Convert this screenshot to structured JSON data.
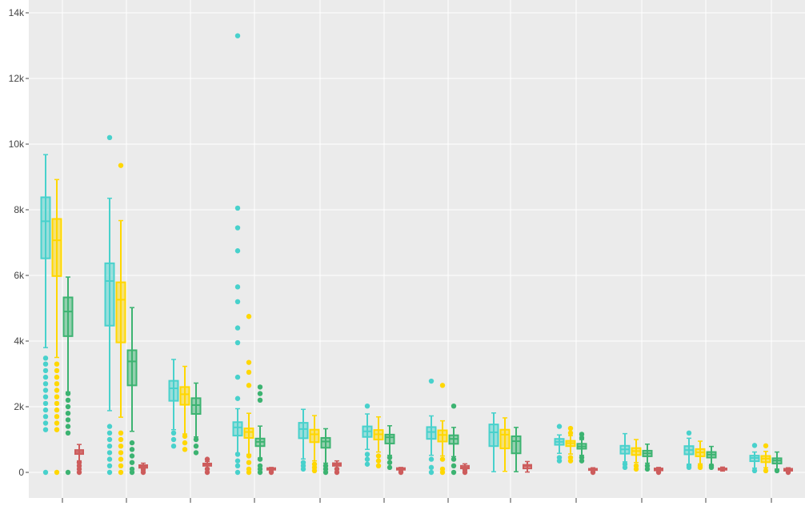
{
  "chart_data": {
    "type": "box",
    "title": "",
    "xlabel": "",
    "ylabel": "",
    "ylim": [
      -600,
      14000
    ],
    "yticks": [
      0,
      2000,
      4000,
      6000,
      8000,
      10000,
      12000,
      14000
    ],
    "ytick_labels": [
      "0",
      "2k",
      "4k",
      "6k",
      "8k",
      "10k",
      "12k",
      "14k"
    ],
    "series_colors": [
      "#48d1cc",
      "#ffd700",
      "#3cb371",
      "#cd5c5c"
    ],
    "groups": [
      {
        "boxes": [
          {
            "min": 3800,
            "q1": 6520,
            "median": 7650,
            "q3": 8380,
            "max": 9680,
            "outliers": [
              3480,
              3300,
              3100,
              2900,
              2700,
              2500,
              2300,
              2100,
              1900,
              1700,
              1500,
              1300,
              0
            ]
          },
          {
            "min": 3500,
            "q1": 5980,
            "median": 7070,
            "q3": 7720,
            "max": 8920,
            "outliers": [
              3300,
              3100,
              2900,
              2700,
              2500,
              2300,
              2100,
              1900,
              1700,
              1500,
              1300,
              0
            ]
          },
          {
            "min": 2450,
            "q1": 4150,
            "median": 4900,
            "q3": 5330,
            "max": 5950,
            "outliers": [
              2400,
              2200,
              2000,
              1800,
              1600,
              1400,
              1200,
              0
            ]
          },
          {
            "min": 350,
            "q1": 560,
            "median": 620,
            "q3": 680,
            "max": 850,
            "outliers": [
              300,
              200,
              100,
              0
            ]
          }
        ]
      },
      {
        "boxes": [
          {
            "min": 1880,
            "q1": 4470,
            "median": 5830,
            "q3": 6370,
            "max": 8350,
            "outliers": [
              10200,
              1400,
              1200,
              1000,
              800,
              600,
              400,
              200,
              0
            ]
          },
          {
            "min": 1680,
            "q1": 3960,
            "median": 5260,
            "q3": 5790,
            "max": 7670,
            "outliers": [
              9350,
              1200,
              1000,
              800,
              600,
              400,
              200,
              0
            ]
          },
          {
            "min": 1250,
            "q1": 2650,
            "median": 3380,
            "q3": 3720,
            "max": 5020,
            "outliers": [
              900,
              700,
              500,
              300,
              100,
              0
            ]
          },
          {
            "min": 60,
            "q1": 140,
            "median": 180,
            "q3": 220,
            "max": 280,
            "outliers": [
              100,
              0
            ]
          }
        ]
      },
      {
        "boxes": [
          {
            "min": 1300,
            "q1": 2180,
            "median": 2560,
            "q3": 2790,
            "max": 3440,
            "outliers": [
              1200,
              1000,
              800
            ]
          },
          {
            "min": 1170,
            "q1": 2060,
            "median": 2380,
            "q3": 2600,
            "max": 3230,
            "outliers": [
              1100,
              900,
              700
            ]
          },
          {
            "min": 1080,
            "q1": 1780,
            "median": 2050,
            "q3": 2260,
            "max": 2720,
            "outliers": [
              1000,
              800,
              600
            ]
          },
          {
            "min": 120,
            "q1": 200,
            "median": 240,
            "q3": 270,
            "max": 330,
            "outliers": [
              400,
              100,
              0
            ]
          }
        ]
      },
      {
        "boxes": [
          {
            "min": 580,
            "q1": 1120,
            "median": 1370,
            "q3": 1530,
            "max": 1940,
            "outliers": [
              13300,
              8050,
              7450,
              6750,
              5650,
              5200,
              4400,
              3950,
              2900,
              2250,
              550,
              350,
              200,
              0
            ]
          },
          {
            "min": 550,
            "q1": 1050,
            "median": 1230,
            "q3": 1340,
            "max": 1800,
            "outliers": [
              4750,
              3350,
              3050,
              2650,
              500,
              300,
              100,
              0
            ]
          },
          {
            "min": 440,
            "q1": 800,
            "median": 930,
            "q3": 1030,
            "max": 1410,
            "outliers": [
              2600,
              2400,
              2200,
              400,
              200,
              100,
              0
            ]
          },
          {
            "min": 40,
            "q1": 80,
            "median": 110,
            "q3": 130,
            "max": 150,
            "outliers": [
              0
            ]
          }
        ]
      },
      {
        "boxes": [
          {
            "min": 410,
            "q1": 1040,
            "median": 1320,
            "q3": 1510,
            "max": 1920,
            "outliers": [
              300,
              200,
              100
            ]
          },
          {
            "min": 350,
            "q1": 920,
            "median": 1160,
            "q3": 1300,
            "max": 1730,
            "outliers": [
              250,
              150,
              50
            ]
          },
          {
            "min": 280,
            "q1": 750,
            "median": 940,
            "q3": 1050,
            "max": 1330,
            "outliers": [
              200,
              100,
              0
            ]
          },
          {
            "min": 120,
            "q1": 200,
            "median": 240,
            "q3": 280,
            "max": 350,
            "outliers": [
              100,
              0
            ]
          }
        ]
      },
      {
        "boxes": [
          {
            "min": 700,
            "q1": 1080,
            "median": 1250,
            "q3": 1400,
            "max": 1780,
            "outliers": [
              2020,
              550,
              400,
              250
            ]
          },
          {
            "min": 620,
            "q1": 1000,
            "median": 1160,
            "q3": 1290,
            "max": 1690,
            "outliers": [
              500,
              350,
              200
            ]
          },
          {
            "min": 520,
            "q1": 880,
            "median": 1070,
            "q3": 1150,
            "max": 1420,
            "outliers": [
              450,
              300,
              150
            ]
          },
          {
            "min": 40,
            "q1": 80,
            "median": 110,
            "q3": 130,
            "max": 150,
            "outliers": [
              0
            ]
          }
        ]
      },
      {
        "boxes": [
          {
            "min": 520,
            "q1": 1020,
            "median": 1230,
            "q3": 1380,
            "max": 1720,
            "outliers": [
              2780,
              400,
              150,
              0
            ]
          },
          {
            "min": 500,
            "q1": 940,
            "median": 1140,
            "q3": 1280,
            "max": 1570,
            "outliers": [
              2650,
              400,
              100,
              0
            ]
          },
          {
            "min": 480,
            "q1": 870,
            "median": 1020,
            "q3": 1130,
            "max": 1370,
            "outliers": [
              2020,
              400,
              200,
              0
            ]
          },
          {
            "min": 60,
            "q1": 120,
            "median": 150,
            "q3": 200,
            "max": 260,
            "outliers": [
              100,
              0
            ]
          }
        ]
      },
      {
        "boxes": [
          {
            "min": 20,
            "q1": 800,
            "median": 1220,
            "q3": 1460,
            "max": 1810,
            "outliers": []
          },
          {
            "min": 30,
            "q1": 730,
            "median": 1150,
            "q3": 1300,
            "max": 1660,
            "outliers": []
          },
          {
            "min": 20,
            "q1": 580,
            "median": 950,
            "q3": 1100,
            "max": 1370,
            "outliers": []
          },
          {
            "min": 10,
            "q1": 120,
            "median": 190,
            "q3": 230,
            "max": 330,
            "outliers": []
          }
        ]
      },
      {
        "boxes": [
          {
            "min": 580,
            "q1": 840,
            "median": 930,
            "q3": 1020,
            "max": 1140,
            "outliers": [
              1400,
              450,
              350
            ]
          },
          {
            "min": 560,
            "q1": 800,
            "median": 890,
            "q3": 960,
            "max": 1120,
            "outliers": [
              1340,
              1200,
              450,
              350
            ]
          },
          {
            "min": 520,
            "q1": 720,
            "median": 790,
            "q3": 870,
            "max": 1000,
            "outliers": [
              1160,
              1050,
              450,
              350
            ]
          },
          {
            "min": 30,
            "q1": 70,
            "median": 90,
            "q3": 110,
            "max": 140,
            "outliers": [
              0
            ]
          }
        ]
      },
      {
        "boxes": [
          {
            "min": 320,
            "q1": 570,
            "median": 700,
            "q3": 810,
            "max": 1180,
            "outliers": [
              250,
              150
            ]
          },
          {
            "min": 300,
            "q1": 530,
            "median": 650,
            "q3": 740,
            "max": 1000,
            "outliers": [
              200,
              100
            ]
          },
          {
            "min": 280,
            "q1": 490,
            "median": 580,
            "q3": 660,
            "max": 860,
            "outliers": [
              200,
              100
            ]
          },
          {
            "min": 20,
            "q1": 60,
            "median": 90,
            "q3": 120,
            "max": 150,
            "outliers": [
              0
            ]
          }
        ]
      },
      {
        "boxes": [
          {
            "min": 250,
            "q1": 550,
            "median": 680,
            "q3": 800,
            "max": 1040,
            "outliers": [
              1200,
              200,
              150
            ]
          },
          {
            "min": 260,
            "q1": 490,
            "median": 610,
            "q3": 710,
            "max": 950,
            "outliers": [
              200,
              150
            ]
          },
          {
            "min": 240,
            "q1": 450,
            "median": 540,
            "q3": 620,
            "max": 790,
            "outliers": [
              200,
              150
            ]
          },
          {
            "min": 40,
            "q1": 80,
            "median": 100,
            "q3": 120,
            "max": 160,
            "outliers": []
          }
        ]
      },
      {
        "boxes": [
          {
            "min": 130,
            "q1": 340,
            "median": 440,
            "q3": 510,
            "max": 620,
            "outliers": [
              820,
              50
            ]
          },
          {
            "min": 140,
            "q1": 310,
            "median": 420,
            "q3": 500,
            "max": 640,
            "outliers": [
              810,
              50
            ]
          },
          {
            "min": 100,
            "q1": 270,
            "median": 360,
            "q3": 430,
            "max": 620,
            "outliers": [
              50
            ]
          },
          {
            "min": 20,
            "q1": 50,
            "median": 80,
            "q3": 110,
            "max": 140,
            "outliers": [
              0
            ]
          }
        ]
      }
    ]
  }
}
